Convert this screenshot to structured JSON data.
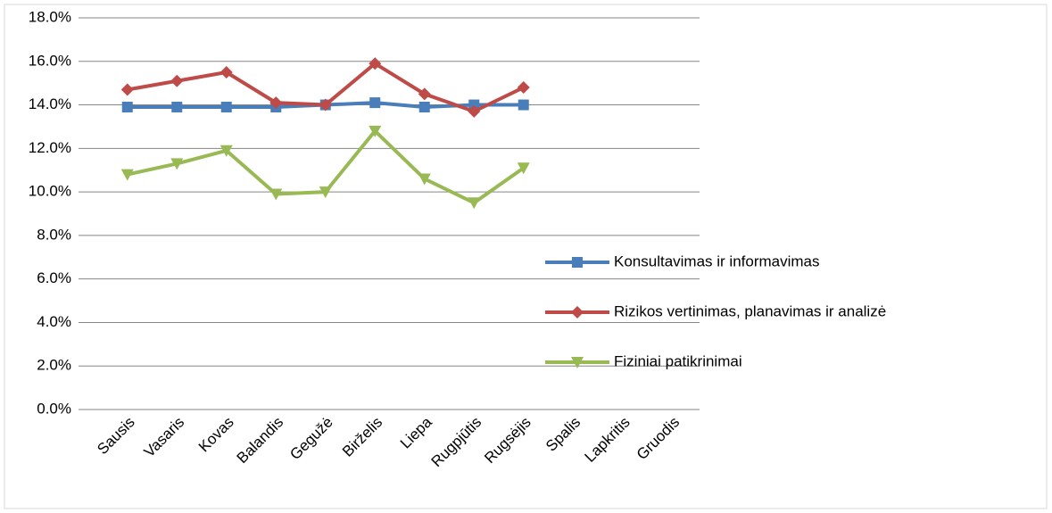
{
  "chart_data": {
    "type": "line",
    "categories": [
      "Sausis",
      "Vasaris",
      "Kovas",
      "Balandis",
      "Gegužė",
      "Birželis",
      "Liepa",
      "Rugpjūtis",
      "Rugsėjis",
      "Spalis",
      "Lapkritis",
      "Gruodis"
    ],
    "series": [
      {
        "name": "Konsultavimas ir informavimas",
        "color": "#4a7ebb",
        "marker": "square",
        "values": [
          13.9,
          13.9,
          13.9,
          13.9,
          14.0,
          14.1,
          13.9,
          14.0,
          14.0,
          null,
          null,
          null
        ]
      },
      {
        "name": "Rizikos vertinimas, planavimas ir analizė",
        "color": "#be4b48",
        "marker": "diamond",
        "values": [
          14.7,
          15.1,
          15.5,
          14.1,
          14.0,
          15.9,
          14.5,
          13.7,
          14.8,
          null,
          null,
          null
        ]
      },
      {
        "name": "Fiziniai patikrinimai",
        "color": "#98b954",
        "marker": "triangle-down",
        "values": [
          10.8,
          11.3,
          11.9,
          9.9,
          10.0,
          12.8,
          10.6,
          9.5,
          11.1,
          null,
          null,
          null
        ]
      }
    ],
    "ylim": [
      0,
      18
    ],
    "yticks": [
      {
        "value": 0,
        "label": "0.0%"
      },
      {
        "value": 2,
        "label": "2.0%"
      },
      {
        "value": 4,
        "label": "4.0%"
      },
      {
        "value": 6,
        "label": "6.0%"
      },
      {
        "value": 8,
        "label": "8.0%"
      },
      {
        "value": 10,
        "label": "10.0%"
      },
      {
        "value": 12,
        "label": "12.0%"
      },
      {
        "value": 14,
        "label": "14.0%"
      },
      {
        "value": 16,
        "label": "16.0%"
      },
      {
        "value": 18,
        "label": "18.0%"
      }
    ],
    "grid": true,
    "legend": "right"
  }
}
